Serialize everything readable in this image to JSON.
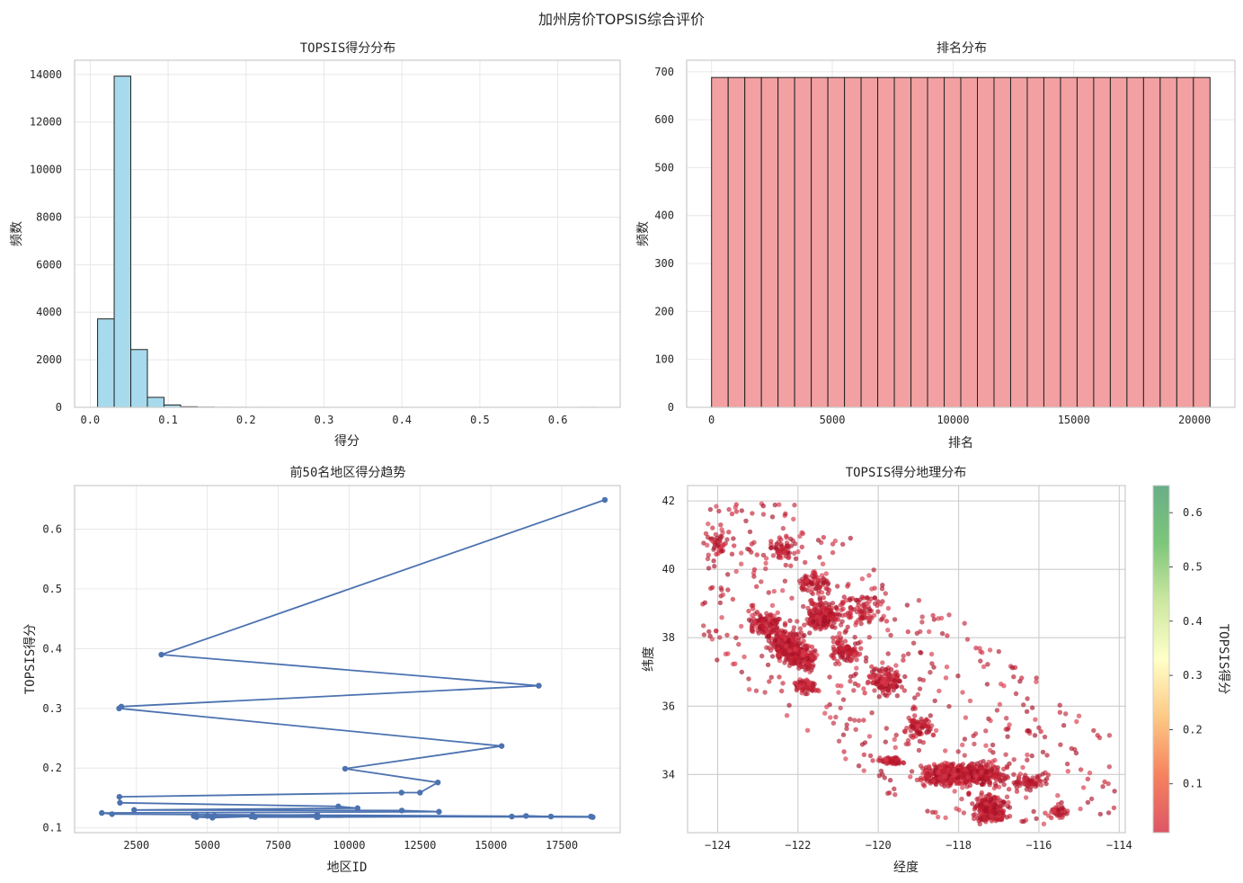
{
  "title": "加州房价TOPSIS综合评价",
  "colors": {
    "hist_fill": "#a6daec",
    "rank_fill": "#f2a0a2",
    "line": "#4c72b0",
    "bar_edge": "#222222",
    "cmap": [
      "#d7384a",
      "#f46d43",
      "#fdbf6f",
      "#ffffbf",
      "#c3e38f",
      "#66bd63",
      "#4f9f72"
    ]
  },
  "chart_data": [
    {
      "id": "hist",
      "type": "bar",
      "title": "TOPSIS得分分布",
      "xlabel": "得分",
      "ylabel": "频数",
      "xlim": [
        -0.02,
        0.68
      ],
      "ylim": [
        0,
        14600
      ],
      "xticks": [
        0.0,
        0.1,
        0.2,
        0.3,
        0.4,
        0.5,
        0.6
      ],
      "xtick_labels": [
        "0.0",
        "0.1",
        "0.2",
        "0.3",
        "0.4",
        "0.5",
        "0.6"
      ],
      "yticks": [
        0,
        2000,
        4000,
        6000,
        8000,
        10000,
        12000,
        14000
      ],
      "ytick_labels": [
        "0",
        "2000",
        "4000",
        "6000",
        "8000",
        "10000",
        "12000",
        "14000"
      ],
      "bin_start": 0.0095,
      "bin_width": 0.0213,
      "values": [
        3720,
        13930,
        2430,
        420,
        100,
        25,
        8,
        3,
        2,
        1,
        1,
        0,
        0,
        0,
        0,
        0,
        0,
        0,
        0,
        0,
        0,
        0,
        0,
        0,
        0,
        0,
        0,
        0,
        0,
        1
      ]
    },
    {
      "id": "rank",
      "type": "bar",
      "title": "排名分布",
      "xlabel": "排名",
      "ylabel": "频数",
      "xlim": [
        -1030,
        21670
      ],
      "ylim": [
        0,
        724
      ],
      "xticks": [
        0,
        5000,
        10000,
        15000,
        20000
      ],
      "xtick_labels": [
        "0",
        "5000",
        "10000",
        "15000",
        "20000"
      ],
      "yticks": [
        0,
        100,
        200,
        300,
        400,
        500,
        600,
        700
      ],
      "ytick_labels": [
        "0",
        "100",
        "200",
        "300",
        "400",
        "500",
        "600",
        "700"
      ],
      "bin_start": 1,
      "bin_width": 687.97,
      "values": [
        688,
        688,
        688,
        688,
        688,
        688,
        688,
        688,
        688,
        688,
        688,
        688,
        688,
        688,
        688,
        688,
        688,
        688,
        688,
        688,
        688,
        688,
        688,
        688,
        688,
        688,
        688,
        688,
        688,
        688
      ]
    },
    {
      "id": "trend",
      "type": "line",
      "title": "前50名地区得分趋势",
      "xlabel": "地区ID",
      "ylabel": "TOPSIS得分",
      "xlim": [
        320,
        19560
      ],
      "ylim": [
        0.092,
        0.673
      ],
      "xticks": [
        2500,
        5000,
        7500,
        10000,
        12500,
        15000,
        17500
      ],
      "xtick_labels": [
        "2500",
        "5000",
        "7500",
        "10000",
        "12500",
        "15000",
        "17500"
      ],
      "yticks": [
        0.1,
        0.2,
        0.3,
        0.4,
        0.5,
        0.6
      ],
      "ytick_labels": [
        "0.1",
        "0.2",
        "0.3",
        "0.4",
        "0.5",
        "0.6"
      ],
      "x": [
        19020,
        3380,
        16690,
        1970,
        1890,
        15380,
        9860,
        13130,
        12500,
        11850,
        1900,
        1920,
        9620,
        10300,
        2420,
        11860,
        13170,
        1280,
        1640,
        18530,
        17120,
        16240,
        15740,
        8860,
        6680,
        6550,
        5180,
        4620,
        5000,
        8860,
        18590,
        4520,
        8880,
        6600,
        5250,
        8860,
        4600,
        8900
      ],
      "y": [
        0.649,
        0.39,
        0.338,
        0.303,
        0.3,
        0.237,
        0.199,
        0.176,
        0.159,
        0.159,
        0.152,
        0.142,
        0.136,
        0.133,
        0.13,
        0.129,
        0.127,
        0.125,
        0.123,
        0.119,
        0.119,
        0.12,
        0.119,
        0.118,
        0.118,
        0.119,
        0.117,
        0.118,
        0.12,
        0.119,
        0.118,
        0.12,
        0.122,
        0.121,
        0.12,
        0.119,
        0.121,
        0.118
      ]
    },
    {
      "id": "geo",
      "type": "scatter",
      "title": "TOPSIS得分地理分布",
      "xlabel": "经度",
      "ylabel": "纬度",
      "xlim": [
        -124.75,
        -113.85
      ],
      "ylim": [
        32.3,
        42.45
      ],
      "xticks": [
        -124,
        -122,
        -120,
        -118,
        -116,
        -114
      ],
      "xtick_labels": [
        "−124",
        "−122",
        "−120",
        "−118",
        "−116",
        "−114"
      ],
      "yticks": [
        34,
        36,
        38,
        40,
        42
      ],
      "ytick_labels": [
        "34",
        "36",
        "38",
        "40",
        "42"
      ],
      "colorbar": {
        "label": "TOPSIS得分",
        "range": [
          0.01,
          0.65
        ],
        "ticks": [
          0.1,
          0.2,
          0.3,
          0.4,
          0.5,
          0.6
        ],
        "tick_labels": [
          "0.1",
          "0.2",
          "0.3",
          "0.4",
          "0.5",
          "0.6"
        ]
      }
    }
  ]
}
